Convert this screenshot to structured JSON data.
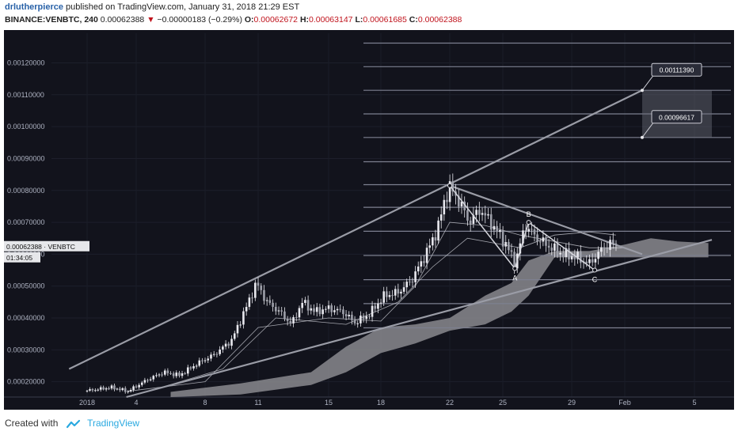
{
  "header": {
    "author": "drlutherpierce",
    "published_text": "published on TradingView.com, January 31, 2018 21:29 EST",
    "symbol": "BINANCE:VENBTC, 240",
    "last": "0.00062388",
    "arrow": "▼",
    "change": "−0.00000183 (−0.29%)",
    "o_label": "O:",
    "o_value": "0.00062672",
    "h_label": "H:",
    "h_value": "0.00063147",
    "l_label": "L:",
    "l_value": "0.00061685",
    "c_label": "C:",
    "c_value": "0.00062388"
  },
  "footer": {
    "created_with": "Created with",
    "brand": "TradingView"
  },
  "colors": {
    "background": "#12131c",
    "candle": "#e8e8ee",
    "cloud": "#8a8a8e",
    "lines": "#9a9ca6",
    "axis_text": "#aeb3c2"
  },
  "chart_data": {
    "type": "candlestick",
    "symbol": "BINANCE:VENBTC",
    "interval": "240",
    "x_ticks": [
      "2018",
      "4",
      "8",
      "11",
      "15",
      "18",
      "22",
      "25",
      "29",
      "Feb",
      "5"
    ],
    "y_ticks": [
      "0.00020000",
      "0.00030000",
      "0.00040000",
      "0.00050000",
      "0.00060000",
      "0.00070000",
      "0.00080000",
      "0.00090000",
      "0.00100000",
      "0.00110000",
      "0.00120000"
    ],
    "ylim": [
      0.000152,
      0.001293
    ],
    "price_tag": {
      "value": "0.00062388",
      "symbol": "VENBTC",
      "countdown": "01:34:05"
    },
    "anchors": [
      {
        "label": "2018",
        "day": 1
      },
      {
        "label": "4",
        "day": 4
      },
      {
        "label": "8",
        "day": 8
      },
      {
        "label": "11",
        "day": 11
      },
      {
        "label": "15",
        "day": 15
      },
      {
        "label": "18",
        "day": 18
      },
      {
        "label": "22",
        "day": 22
      },
      {
        "label": "25",
        "day": 25
      },
      {
        "label": "29",
        "day": 29
      },
      {
        "label": "Feb",
        "day": 32
      },
      {
        "label": "5",
        "day": 36
      }
    ],
    "close_path": [
      {
        "day": 1.0,
        "price": 0.000172
      },
      {
        "day": 2.5,
        "price": 0.000182
      },
      {
        "day": 3.5,
        "price": 0.00017
      },
      {
        "day": 4.6,
        "price": 0.000205
      },
      {
        "day": 5.6,
        "price": 0.00023
      },
      {
        "day": 6.5,
        "price": 0.00022
      },
      {
        "day": 7.5,
        "price": 0.000255
      },
      {
        "day": 8.5,
        "price": 0.000285
      },
      {
        "day": 9.5,
        "price": 0.00033
      },
      {
        "day": 10.3,
        "price": 0.00043
      },
      {
        "day": 10.9,
        "price": 0.00051
      },
      {
        "day": 11.5,
        "price": 0.00045
      },
      {
        "day": 12.2,
        "price": 0.00042
      },
      {
        "day": 12.9,
        "price": 0.00038
      },
      {
        "day": 13.5,
        "price": 0.00045
      },
      {
        "day": 14.2,
        "price": 0.00042
      },
      {
        "day": 15.0,
        "price": 0.00043
      },
      {
        "day": 15.8,
        "price": 0.00042
      },
      {
        "day": 16.5,
        "price": 0.000385
      },
      {
        "day": 17.3,
        "price": 0.00041
      },
      {
        "day": 18.2,
        "price": 0.00047
      },
      {
        "day": 19.0,
        "price": 0.00048
      },
      {
        "day": 19.8,
        "price": 0.00052
      },
      {
        "day": 20.6,
        "price": 0.0006
      },
      {
        "day": 21.3,
        "price": 0.00068
      },
      {
        "day": 21.7,
        "price": 0.00077
      },
      {
        "day": 22.0,
        "price": 0.00081
      },
      {
        "day": 22.6,
        "price": 0.00076
      },
      {
        "day": 23.1,
        "price": 0.0007
      },
      {
        "day": 23.7,
        "price": 0.00074
      },
      {
        "day": 24.3,
        "price": 0.0007
      },
      {
        "day": 25.2,
        "price": 0.00063
      },
      {
        "day": 25.7,
        "price": 0.00057
      },
      {
        "day": 26.3,
        "price": 0.00069
      },
      {
        "day": 27.0,
        "price": 0.00065
      },
      {
        "day": 27.8,
        "price": 0.00062
      },
      {
        "day": 28.5,
        "price": 0.0006
      },
      {
        "day": 29.3,
        "price": 0.00059
      },
      {
        "day": 30.0,
        "price": 0.00057
      },
      {
        "day": 30.6,
        "price": 0.00061
      },
      {
        "day": 31.2,
        "price": 0.000635
      },
      {
        "day": 31.6,
        "price": 0.000624
      }
    ],
    "candle_step_days": 0.1667,
    "ichimoku_cloud": {
      "upper": [
        {
          "day": 6.0,
          "price": 0.000168
        },
        {
          "day": 10.0,
          "price": 0.000195
        },
        {
          "day": 14.0,
          "price": 0.00023
        },
        {
          "day": 16.0,
          "price": 0.00031
        },
        {
          "day": 18.0,
          "price": 0.00037
        },
        {
          "day": 20.0,
          "price": 0.00038
        },
        {
          "day": 22.0,
          "price": 0.0004
        },
        {
          "day": 24.0,
          "price": 0.00047
        },
        {
          "day": 25.5,
          "price": 0.00051
        },
        {
          "day": 26.5,
          "price": 0.00058
        },
        {
          "day": 28.0,
          "price": 0.00061
        },
        {
          "day": 30.0,
          "price": 0.00061
        },
        {
          "day": 32.0,
          "price": 0.00063
        },
        {
          "day": 33.5,
          "price": 0.00065
        },
        {
          "day": 35.0,
          "price": 0.00064
        },
        {
          "day": 36.8,
          "price": 0.000635
        }
      ],
      "lower": [
        {
          "day": 6.0,
          "price": 0.000152
        },
        {
          "day": 10.0,
          "price": 0.00016
        },
        {
          "day": 14.0,
          "price": 0.00019
        },
        {
          "day": 16.0,
          "price": 0.00023
        },
        {
          "day": 18.0,
          "price": 0.00029
        },
        {
          "day": 20.0,
          "price": 0.00032
        },
        {
          "day": 22.0,
          "price": 0.00036
        },
        {
          "day": 24.0,
          "price": 0.00038
        },
        {
          "day": 25.5,
          "price": 0.00042
        },
        {
          "day": 26.5,
          "price": 0.00047
        },
        {
          "day": 28.0,
          "price": 0.00059
        },
        {
          "day": 30.0,
          "price": 0.00059
        },
        {
          "day": 32.0,
          "price": 0.00059
        },
        {
          "day": 33.5,
          "price": 0.00059
        },
        {
          "day": 35.0,
          "price": 0.00059
        },
        {
          "day": 36.8,
          "price": 0.00059
        }
      ]
    },
    "indicator_lines": [
      [
        {
          "day": 3.5,
          "price": 0.00017
        },
        {
          "day": 8.0,
          "price": 0.0002
        },
        {
          "day": 11.0,
          "price": 0.00037
        },
        {
          "day": 15.0,
          "price": 0.0004
        },
        {
          "day": 18.0,
          "price": 0.00039
        },
        {
          "day": 20.0,
          "price": 0.0005
        },
        {
          "day": 22.0,
          "price": 0.0007
        },
        {
          "day": 24.0,
          "price": 0.00069
        },
        {
          "day": 26.0,
          "price": 0.00066
        },
        {
          "day": 28.0,
          "price": 0.00064
        },
        {
          "day": 30.0,
          "price": 0.00062
        },
        {
          "day": 32.0,
          "price": 0.00062
        }
      ],
      [
        {
          "day": 5.0,
          "price": 0.000175
        },
        {
          "day": 9.0,
          "price": 0.00024
        },
        {
          "day": 12.0,
          "price": 0.0004
        },
        {
          "day": 16.0,
          "price": 0.00038
        },
        {
          "day": 19.0,
          "price": 0.00045
        },
        {
          "day": 21.0,
          "price": 0.00056
        },
        {
          "day": 23.0,
          "price": 0.00065
        },
        {
          "day": 26.0,
          "price": 0.00062
        },
        {
          "day": 28.0,
          "price": 0.00066
        },
        {
          "day": 30.0,
          "price": 0.00067
        },
        {
          "day": 31.5,
          "price": 0.00066
        }
      ]
    ],
    "fib_levels": [
      0.000369,
      0.000445,
      0.00052,
      0.000596,
      0.000672,
      0.000747,
      0.000818,
      0.00089,
      0.000966,
      0.00104,
      0.001114,
      0.001188,
      0.001262
    ],
    "fib_start_day": 17.0,
    "trendlines": [
      {
        "from": {
          "day": -0.1,
          "price": 0.00024
        },
        "to": {
          "day": 33.0,
          "price": 0.001114
        }
      },
      {
        "from": {
          "day": 3.4,
          "price": 0.000152
        },
        "to": {
          "day": 37.0,
          "price": 0.000645
        }
      },
      {
        "from": {
          "day": 22.0,
          "price": 0.000815
        },
        "to": {
          "day": 33.0,
          "price": 0.0006
        }
      }
    ],
    "abc_pattern": [
      {
        "label": "",
        "day": 22.0,
        "price": 0.000815
      },
      {
        "label": "A",
        "day": 25.7,
        "price": 0.000555
      },
      {
        "label": "B",
        "day": 26.5,
        "price": 0.0007
      },
      {
        "label": "C",
        "day": 30.3,
        "price": 0.00055
      }
    ],
    "target_zone": {
      "from_day": 33.0,
      "to_day": 37.0,
      "price_high": 0.0011139,
      "price_low": 0.00096617,
      "labels": [
        "0.00111390",
        "0.00096617"
      ]
    }
  }
}
